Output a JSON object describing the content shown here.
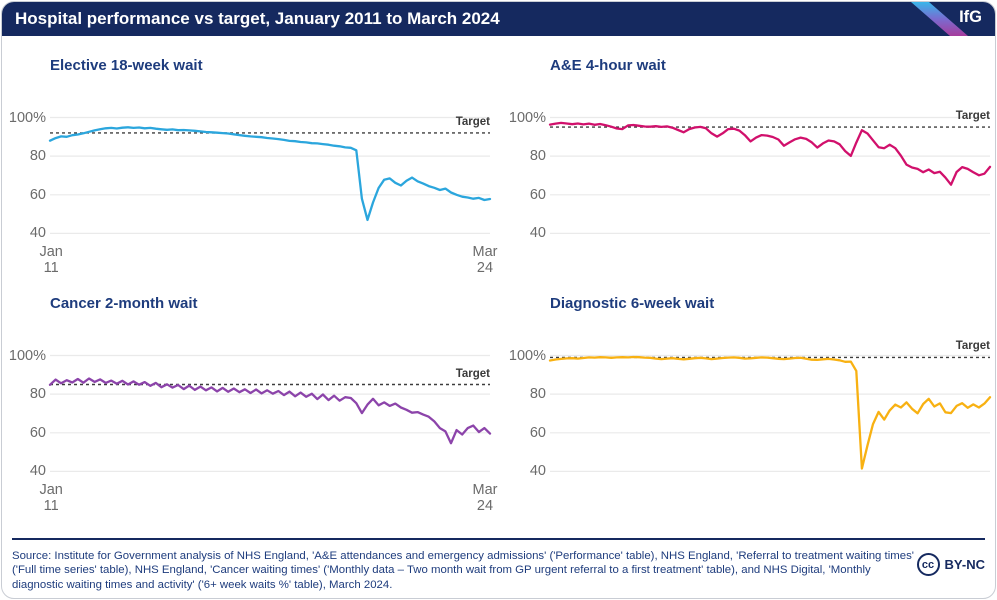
{
  "header": {
    "title": "Hospital performance vs target, January 2011 to March 2024",
    "logo_text": "IfG"
  },
  "chart_data": [
    {
      "type": "line",
      "title": "Elective 18-week wait",
      "color": "#2BA6DD",
      "target": 92,
      "target_label": "Target",
      "ylim": [
        40,
        100
      ],
      "y_ticks": [
        [
          100,
          "100%"
        ],
        [
          80,
          "80"
        ],
        [
          60,
          "60"
        ],
        [
          40,
          "40"
        ]
      ],
      "x_range": [
        "Jan 2011",
        "Mar 2024"
      ],
      "points_every_months": 2,
      "x_tick_labels": {
        "left": [
          "Jan",
          "11"
        ],
        "right": [
          "Mar",
          "24"
        ]
      },
      "values": [
        88.0,
        89.3,
        90.2,
        90.0,
        90.8,
        91.2,
        91.8,
        92.6,
        93.3,
        93.9,
        94.4,
        94.6,
        94.3,
        94.7,
        94.9,
        94.6,
        94.8,
        94.4,
        94.6,
        94.2,
        93.9,
        93.6,
        93.8,
        93.4,
        93.5,
        93.3,
        93.1,
        92.8,
        92.5,
        92.3,
        92.1,
        91.9,
        91.7,
        91.3,
        90.9,
        90.5,
        90.2,
        90.0,
        89.8,
        89.4,
        89.1,
        88.8,
        88.4,
        87.9,
        87.7,
        87.3,
        87.1,
        86.7,
        86.6,
        86.2,
        85.9,
        85.4,
        85.1,
        84.5,
        84.3,
        83.0,
        58.0,
        47.0,
        56.0,
        63.5,
        67.8,
        68.5,
        66.2,
        64.8,
        67.3,
        68.9,
        67.0,
        65.8,
        64.5,
        63.6,
        62.5,
        63.2,
        61.2,
        60.0,
        59.0,
        58.6,
        58.0,
        58.4,
        57.3,
        57.8
      ]
    },
    {
      "type": "line",
      "title": "A&E 4-hour wait",
      "color": "#D1106C",
      "target": 95,
      "target_label": "Target",
      "ylim": [
        40,
        100
      ],
      "y_ticks": [
        [
          100,
          "100%"
        ],
        [
          80,
          "80"
        ],
        [
          60,
          "60"
        ],
        [
          40,
          "40"
        ]
      ],
      "x_range": [
        "Jan 2011",
        "Mar 2024"
      ],
      "points_every_months": 2,
      "values": [
        96.3,
        96.8,
        97.2,
        96.9,
        96.5,
        96.9,
        96.4,
        96.8,
        96.2,
        96.6,
        96.0,
        95.2,
        94.3,
        94.0,
        95.9,
        96.1,
        95.7,
        95.3,
        95.2,
        95.5,
        95.1,
        95.4,
        94.7,
        93.5,
        92.3,
        94.0,
        94.8,
        95.1,
        94.4,
        91.8,
        90.1,
        91.8,
        94.0,
        94.2,
        93.2,
        90.8,
        87.6,
        89.6,
        90.9,
        90.6,
        89.9,
        88.6,
        85.4,
        87.1,
        88.7,
        89.6,
        88.9,
        87.1,
        84.4,
        86.6,
        88.1,
        87.6,
        86.1,
        82.6,
        80.1,
        87.0,
        93.4,
        91.7,
        88.2,
        84.6,
        84.1,
        85.9,
        84.1,
        80.2,
        75.6,
        74.1,
        73.4,
        71.7,
        73.1,
        71.2,
        71.9,
        68.9,
        65.2,
        71.8,
        74.3,
        73.4,
        71.7,
        70.1,
        70.9,
        74.4
      ]
    },
    {
      "type": "line",
      "title": "Cancer 2-month wait",
      "color": "#8C44AA",
      "target": 85,
      "target_label": "Target",
      "ylim": [
        40,
        100
      ],
      "y_ticks": [
        [
          100,
          "100%"
        ],
        [
          80,
          "80"
        ],
        [
          60,
          "60"
        ],
        [
          40,
          "40"
        ]
      ],
      "x_range": [
        "Jan 2011",
        "Mar 2024"
      ],
      "points_every_months": 2,
      "x_tick_labels": {
        "left": [
          "Jan",
          "11"
        ],
        "right": [
          "Mar",
          "24"
        ]
      },
      "values": [
        84.8,
        87.5,
        85.6,
        87.2,
        86.0,
        87.8,
        85.9,
        88.1,
        86.3,
        87.6,
        85.8,
        87.0,
        85.4,
        86.9,
        85.0,
        86.6,
        84.9,
        86.2,
        84.3,
        85.8,
        83.6,
        85.1,
        83.4,
        84.7,
        82.6,
        84.4,
        82.2,
        83.9,
        82.0,
        83.5,
        81.4,
        83.2,
        81.2,
        82.9,
        81.0,
        82.5,
        80.6,
        82.4,
        80.4,
        82.0,
        80.2,
        81.6,
        79.5,
        81.3,
        78.9,
        80.8,
        78.6,
        80.2,
        77.4,
        79.8,
        76.9,
        79.2,
        76.6,
        78.4,
        78.0,
        75.3,
        70.2,
        74.6,
        77.6,
        74.2,
        75.7,
        73.9,
        75.1,
        73.1,
        71.9,
        70.4,
        70.7,
        69.4,
        68.3,
        65.9,
        62.4,
        60.7,
        54.6,
        61.4,
        59.1,
        62.4,
        63.7,
        60.4,
        62.4,
        59.6
      ]
    },
    {
      "type": "line",
      "title": "Diagnostic 6-week wait",
      "color": "#F8B112",
      "target": 99,
      "target_label": "Target",
      "ylim": [
        40,
        100
      ],
      "y_ticks": [
        [
          100,
          "100%"
        ],
        [
          80,
          "80"
        ],
        [
          60,
          "60"
        ],
        [
          40,
          "40"
        ]
      ],
      "x_range": [
        "Jan 2011",
        "Mar 2024"
      ],
      "points_every_months": 2,
      "values": [
        97.4,
        97.9,
        98.2,
        98.5,
        98.6,
        98.4,
        98.7,
        99.0,
        98.9,
        99.1,
        99.0,
        98.8,
        99.0,
        99.1,
        99.0,
        99.2,
        99.1,
        98.9,
        98.8,
        98.4,
        98.1,
        98.4,
        98.6,
        98.2,
        98.0,
        98.3,
        98.6,
        98.8,
        98.5,
        98.1,
        98.4,
        98.7,
        98.9,
        99.0,
        98.8,
        98.4,
        98.5,
        98.8,
        99.0,
        98.9,
        98.6,
        98.3,
        98.1,
        98.4,
        98.7,
        98.8,
        98.3,
        97.8,
        97.7,
        98.0,
        98.2,
        97.9,
        97.5,
        96.7,
        96.8,
        92.0,
        41.5,
        53.5,
        64.5,
        70.8,
        66.8,
        71.6,
        74.6,
        73.1,
        75.7,
        72.4,
        70.1,
        74.9,
        77.6,
        73.6,
        75.2,
        70.6,
        70.2,
        73.9,
        75.3,
        72.9,
        74.7,
        73.1,
        75.1,
        78.4
      ]
    }
  ],
  "footer": {
    "source": "Source: Institute for Government analysis of NHS England, 'A&E attendances and emergency admissions' ('Performance' table), NHS England, 'Referral to treatment waiting times' ('Full time series' table), NHS England, 'Cancer waiting times' ('Monthly data – Two month wait from GP urgent referral to a first treatment' table), and NHS Digital, 'Monthly diagnostic waiting times and activity' ('6+ week waits %' table), March 2024.",
    "cc_icon": "cc",
    "license_label": "BY-NC"
  }
}
